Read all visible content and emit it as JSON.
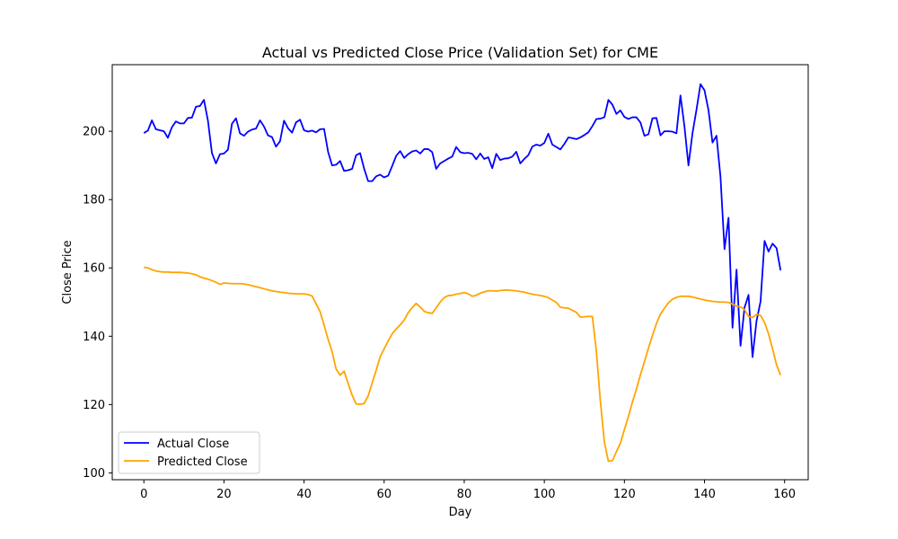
{
  "chart_data": {
    "type": "line",
    "title": "Actual vs Predicted Close Price (Validation Set) for CME",
    "xlabel": "Day",
    "ylabel": "Close Price",
    "xlim": [
      -7.9,
      165.9
    ],
    "ylim": [
      98,
      219.5
    ],
    "xticks": [
      0,
      20,
      40,
      60,
      80,
      100,
      120,
      140,
      160
    ],
    "yticks": [
      100,
      120,
      140,
      160,
      180,
      200
    ],
    "grid": false,
    "legend_position": "lower-left",
    "series": [
      {
        "name": "Actual Close",
        "color": "#0000ff",
        "points": [
          [
            0,
            199.5
          ],
          [
            1,
            200.2
          ],
          [
            2,
            203.2
          ],
          [
            3,
            200.6
          ],
          [
            4,
            200.3
          ],
          [
            5,
            200
          ],
          [
            6,
            198.1
          ],
          [
            7,
            201.2
          ],
          [
            8,
            202.9
          ],
          [
            9,
            202.3
          ],
          [
            10,
            202.3
          ],
          [
            11,
            203.9
          ],
          [
            12,
            204
          ],
          [
            13,
            207.2
          ],
          [
            14,
            207.4
          ],
          [
            15,
            209.2
          ],
          [
            16,
            203.1
          ],
          [
            17,
            193.6
          ],
          [
            18,
            190.6
          ],
          [
            19,
            193.3
          ],
          [
            20,
            193.5
          ],
          [
            21,
            194.6
          ],
          [
            22,
            202.2
          ],
          [
            23,
            203.8
          ],
          [
            24,
            199.4
          ],
          [
            25,
            198.7
          ],
          [
            26,
            199.9
          ],
          [
            27,
            200.5
          ],
          [
            28,
            200.8
          ],
          [
            29,
            203.2
          ],
          [
            30,
            201.4
          ],
          [
            31,
            198.8
          ],
          [
            32,
            198.3
          ],
          [
            33,
            195.5
          ],
          [
            34,
            197.1
          ],
          [
            35,
            203.1
          ],
          [
            36,
            200.9
          ],
          [
            37,
            199.6
          ],
          [
            38,
            202.6
          ],
          [
            39,
            203.4
          ],
          [
            40,
            200.3
          ],
          [
            41,
            199.9
          ],
          [
            42,
            200.2
          ],
          [
            43,
            199.7
          ],
          [
            44,
            200.6
          ],
          [
            45,
            200.7
          ],
          [
            46,
            194
          ],
          [
            47,
            190
          ],
          [
            48,
            190.2
          ],
          [
            49,
            191.3
          ],
          [
            50,
            188.4
          ],
          [
            51,
            188.6
          ],
          [
            52,
            189
          ],
          [
            53,
            193
          ],
          [
            54,
            193.6
          ],
          [
            55,
            189.1
          ],
          [
            56,
            185.4
          ],
          [
            57,
            185.4
          ],
          [
            58,
            186.8
          ],
          [
            59,
            187.3
          ],
          [
            60,
            186.5
          ],
          [
            61,
            187
          ],
          [
            62,
            189.8
          ],
          [
            63,
            192.8
          ],
          [
            64,
            194.2
          ],
          [
            65,
            192.2
          ],
          [
            66,
            193.3
          ],
          [
            67,
            194.1
          ],
          [
            68,
            194.4
          ],
          [
            69,
            193.5
          ],
          [
            70,
            194.8
          ],
          [
            71,
            194.8
          ],
          [
            72,
            193.9
          ],
          [
            73,
            189
          ],
          [
            74,
            190.6
          ],
          [
            75,
            191.3
          ],
          [
            76,
            192
          ],
          [
            77,
            192.6
          ],
          [
            78,
            195.4
          ],
          [
            79,
            193.9
          ],
          [
            80,
            193.6
          ],
          [
            81,
            193.7
          ],
          [
            82,
            193.4
          ],
          [
            83,
            191.8
          ],
          [
            84,
            193.5
          ],
          [
            85,
            191.9
          ],
          [
            86,
            192.4
          ],
          [
            87,
            189.2
          ],
          [
            88,
            193.4
          ],
          [
            89,
            191.6
          ],
          [
            90,
            192
          ],
          [
            91,
            192.1
          ],
          [
            92,
            192.6
          ],
          [
            93,
            194
          ],
          [
            94,
            190.6
          ],
          [
            95,
            191.9
          ],
          [
            96,
            193
          ],
          [
            97,
            195.5
          ],
          [
            98,
            196.1
          ],
          [
            99,
            195.8
          ],
          [
            100,
            196.6
          ],
          [
            101,
            199.3
          ],
          [
            102,
            196.1
          ],
          [
            103,
            195.4
          ],
          [
            104,
            194.7
          ],
          [
            105,
            196.3
          ],
          [
            106,
            198.2
          ],
          [
            107,
            198
          ],
          [
            108,
            197.7
          ],
          [
            109,
            198.2
          ],
          [
            110,
            198.9
          ],
          [
            111,
            199.7
          ],
          [
            112,
            201.5
          ],
          [
            113,
            203.6
          ],
          [
            114,
            203.7
          ],
          [
            115,
            204.1
          ],
          [
            116,
            209.2
          ],
          [
            117,
            207.8
          ],
          [
            118,
            205.1
          ],
          [
            119,
            206.1
          ],
          [
            120,
            204.2
          ],
          [
            121,
            203.6
          ],
          [
            122,
            204.1
          ],
          [
            123,
            204.1
          ],
          [
            124,
            202.6
          ],
          [
            125,
            198.7
          ],
          [
            126,
            199.1
          ],
          [
            127,
            203.8
          ],
          [
            128,
            203.9
          ],
          [
            129,
            198.8
          ],
          [
            130,
            200
          ],
          [
            131,
            200
          ],
          [
            132,
            199.9
          ],
          [
            133,
            199.4
          ],
          [
            134,
            210.5
          ],
          [
            135,
            201.4
          ],
          [
            136,
            190
          ],
          [
            137,
            199.4
          ],
          [
            138,
            206.3
          ],
          [
            139,
            213.8
          ],
          [
            140,
            212
          ],
          [
            141,
            206.2
          ],
          [
            142,
            196.7
          ],
          [
            143,
            198.7
          ],
          [
            144,
            186.6
          ],
          [
            145,
            165.5
          ],
          [
            146,
            174.7
          ],
          [
            147,
            142.5
          ],
          [
            148,
            159.5
          ],
          [
            149,
            137.2
          ],
          [
            150,
            148.4
          ],
          [
            151,
            152.1
          ],
          [
            152,
            133.9
          ],
          [
            153,
            144.5
          ],
          [
            154,
            150.2
          ],
          [
            155,
            167.9
          ],
          [
            156,
            164.8
          ],
          [
            157,
            167.1
          ],
          [
            158,
            165.8
          ],
          [
            159,
            159.3
          ]
        ]
      },
      {
        "name": "Predicted Close",
        "color": "#ffa500",
        "points": [
          [
            0,
            160.2
          ],
          [
            1,
            160
          ],
          [
            2,
            159.5
          ],
          [
            3,
            159.1
          ],
          [
            4,
            158.9
          ],
          [
            5,
            158.8
          ],
          [
            6,
            158.8
          ],
          [
            7,
            158.7
          ],
          [
            8,
            158.7
          ],
          [
            9,
            158.7
          ],
          [
            10,
            158.6
          ],
          [
            11,
            158.5
          ],
          [
            12,
            158.3
          ],
          [
            13,
            158
          ],
          [
            14,
            157.4
          ],
          [
            15,
            157
          ],
          [
            16,
            156.7
          ],
          [
            17,
            156.3
          ],
          [
            18,
            155.8
          ],
          [
            19,
            155.2
          ],
          [
            20,
            155.6
          ],
          [
            21,
            155.5
          ],
          [
            22,
            155.4
          ],
          [
            23,
            155.4
          ],
          [
            24,
            155.4
          ],
          [
            25,
            155.3
          ],
          [
            26,
            155.1
          ],
          [
            27,
            154.8
          ],
          [
            28,
            154.5
          ],
          [
            29,
            154.2
          ],
          [
            30,
            153.9
          ],
          [
            31,
            153.6
          ],
          [
            32,
            153.3
          ],
          [
            33,
            153.1
          ],
          [
            34,
            152.9
          ],
          [
            35,
            152.8
          ],
          [
            36,
            152.6
          ],
          [
            37,
            152.5
          ],
          [
            38,
            152.4
          ],
          [
            39,
            152.4
          ],
          [
            40,
            152.4
          ],
          [
            41,
            152.2
          ],
          [
            42,
            151.8
          ],
          [
            43,
            149.5
          ],
          [
            44,
            147.2
          ],
          [
            45,
            143.3
          ],
          [
            46,
            139.1
          ],
          [
            47,
            135.5
          ],
          [
            48,
            130.4
          ],
          [
            49,
            128.6
          ],
          [
            50,
            129.8
          ],
          [
            51,
            126.2
          ],
          [
            52,
            122.8
          ],
          [
            53,
            120.2
          ],
          [
            54,
            120.1
          ],
          [
            55,
            120.3
          ],
          [
            56,
            122.5
          ],
          [
            57,
            126.3
          ],
          [
            58,
            130
          ],
          [
            59,
            134
          ],
          [
            60,
            136.3
          ],
          [
            61,
            138.6
          ],
          [
            62,
            140.7
          ],
          [
            63,
            142.1
          ],
          [
            64,
            143.3
          ],
          [
            65,
            144.7
          ],
          [
            66,
            146.9
          ],
          [
            67,
            148.4
          ],
          [
            68,
            149.6
          ],
          [
            69,
            148.6
          ],
          [
            70,
            147.3
          ],
          [
            71,
            146.9
          ],
          [
            72,
            146.7
          ],
          [
            73,
            148.3
          ],
          [
            74,
            150
          ],
          [
            75,
            151.3
          ],
          [
            76,
            151.9
          ],
          [
            77,
            152
          ],
          [
            78,
            152.3
          ],
          [
            79,
            152.5
          ],
          [
            80,
            152.8
          ],
          [
            81,
            152.4
          ],
          [
            82,
            151.7
          ],
          [
            83,
            152
          ],
          [
            84,
            152.6
          ],
          [
            85,
            153
          ],
          [
            86,
            153.3
          ],
          [
            87,
            153.3
          ],
          [
            88,
            153.2
          ],
          [
            89,
            153.4
          ],
          [
            90,
            153.5
          ],
          [
            91,
            153.5
          ],
          [
            92,
            153.4
          ],
          [
            93,
            153.3
          ],
          [
            94,
            153.1
          ],
          [
            95,
            152.9
          ],
          [
            96,
            152.6
          ],
          [
            97,
            152.3
          ],
          [
            98,
            152.1
          ],
          [
            99,
            151.9
          ],
          [
            100,
            151.7
          ],
          [
            101,
            151.3
          ],
          [
            102,
            150.6
          ],
          [
            103,
            149.9
          ],
          [
            104,
            148.5
          ],
          [
            105,
            148.3
          ],
          [
            106,
            148.2
          ],
          [
            107,
            147.6
          ],
          [
            108,
            147
          ],
          [
            109,
            145.6
          ],
          [
            110,
            145.7
          ],
          [
            111,
            145.8
          ],
          [
            112,
            145.8
          ],
          [
            113,
            135.6
          ],
          [
            114,
            121
          ],
          [
            115,
            109
          ],
          [
            116,
            103.4
          ],
          [
            117,
            103.6
          ],
          [
            118,
            106.2
          ],
          [
            119,
            108.7
          ],
          [
            120,
            112.7
          ],
          [
            121,
            116.5
          ],
          [
            122,
            120.7
          ],
          [
            123,
            124.5
          ],
          [
            124,
            128.7
          ],
          [
            125,
            132.5
          ],
          [
            126,
            136.5
          ],
          [
            127,
            140.2
          ],
          [
            128,
            143.7
          ],
          [
            129,
            146.5
          ],
          [
            130,
            148.2
          ],
          [
            131,
            149.8
          ],
          [
            132,
            150.8
          ],
          [
            133,
            151.4
          ],
          [
            134,
            151.7
          ],
          [
            135,
            151.7
          ],
          [
            136,
            151.7
          ],
          [
            137,
            151.5
          ],
          [
            138,
            151.2
          ],
          [
            139,
            150.9
          ],
          [
            140,
            150.6
          ],
          [
            141,
            150.4
          ],
          [
            142,
            150.2
          ],
          [
            143,
            150.1
          ],
          [
            144,
            150
          ],
          [
            145,
            150
          ],
          [
            146,
            149.9
          ],
          [
            147,
            149.4
          ],
          [
            148,
            148.8
          ],
          [
            149,
            148.6
          ],
          [
            150,
            147.8
          ],
          [
            151,
            145.8
          ],
          [
            152,
            145.5
          ],
          [
            153,
            146.4
          ],
          [
            154,
            146.1
          ],
          [
            155,
            144
          ],
          [
            156,
            140.7
          ],
          [
            157,
            136.3
          ],
          [
            158,
            131.6
          ],
          [
            159,
            128.6
          ]
        ]
      }
    ]
  }
}
